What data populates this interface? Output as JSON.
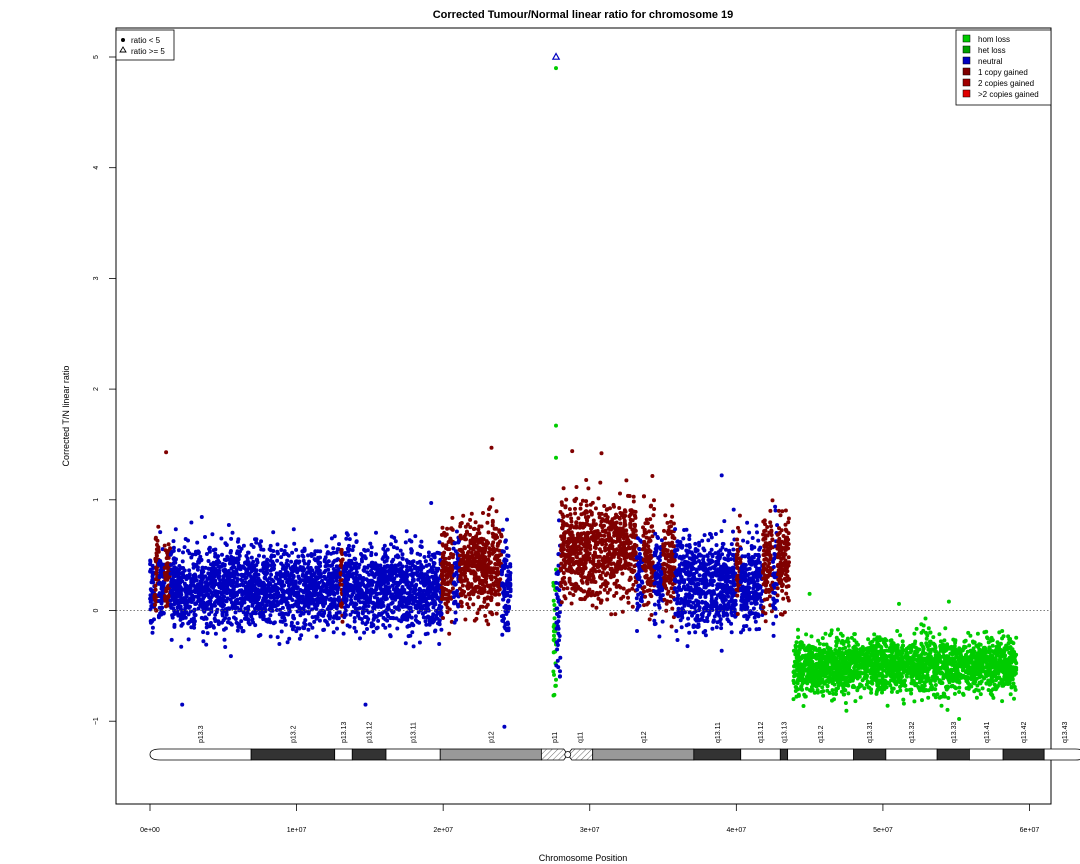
{
  "chart_data": {
    "type": "scatter",
    "title": "Corrected Tumour/Normal linear ratio for chromosome  19",
    "xlabel": "Chromosome Position",
    "ylabel": "Corrected T/N linear ratio",
    "xlim": [
      0,
      61500000
    ],
    "ylim": [
      -1.75,
      5.25
    ],
    "x_ticks": [
      0,
      10000000,
      20000000,
      30000000,
      40000000,
      50000000,
      60000000
    ],
    "x_tick_labels": [
      "0e+00",
      "1e+07",
      "2e+07",
      "3e+07",
      "4e+07",
      "5e+07",
      "6e+07"
    ],
    "y_ticks": [
      -1,
      0,
      1,
      2,
      3,
      4,
      5
    ],
    "y_tick_labels": [
      "−1",
      "0",
      "1",
      "2",
      "3",
      "4",
      "5"
    ],
    "reference_line": 0,
    "grid": false,
    "colors": {
      "hom_loss": "#00cc00",
      "het_loss": "#00a000",
      "neutral": "#0000c0",
      "one_copy_gain": "#800000",
      "two_copy_gain": "#a00000",
      "gt2_copy_gain": "#e00000"
    },
    "legend_shape": {
      "placement": "top-left",
      "entries": [
        "ratio < 5",
        "ratio >= 5"
      ]
    },
    "legend_state": {
      "placement": "top-right",
      "entries": [
        "hom loss",
        "het loss",
        "neutral",
        "1 copy gained",
        "2 copies gained",
        ">2 copies gained"
      ]
    },
    "segments": [
      {
        "state": "neutral",
        "start": 0,
        "end": 300000,
        "mean": 0.15,
        "sd": 0.18
      },
      {
        "state": "one_copy_gain",
        "start": 300000,
        "end": 600000,
        "mean": 0.35,
        "sd": 0.2
      },
      {
        "state": "neutral",
        "start": 600000,
        "end": 1000000,
        "mean": 0.25,
        "sd": 0.18
      },
      {
        "state": "one_copy_gain",
        "start": 1000000,
        "end": 1400000,
        "mean": 0.3,
        "sd": 0.2
      },
      {
        "state": "neutral",
        "start": 1400000,
        "end": 13000000,
        "mean": 0.2,
        "sd": 0.18
      },
      {
        "state": "one_copy_gain",
        "start": 13000000,
        "end": 13200000,
        "mean": 0.25,
        "sd": 0.18
      },
      {
        "state": "neutral",
        "start": 13200000,
        "end": 19900000,
        "mean": 0.2,
        "sd": 0.18
      },
      {
        "state": "one_copy_gain",
        "start": 19900000,
        "end": 20700000,
        "mean": 0.35,
        "sd": 0.2
      },
      {
        "state": "neutral",
        "start": 20700000,
        "end": 21100000,
        "mean": 0.3,
        "sd": 0.18
      },
      {
        "state": "one_copy_gain",
        "start": 21100000,
        "end": 24000000,
        "mean": 0.42,
        "sd": 0.2
      },
      {
        "state": "neutral",
        "start": 24000000,
        "end": 24600000,
        "mean": 0.15,
        "sd": 0.25
      },
      {
        "state": "hom_loss",
        "start": 27500000,
        "end": 27700000,
        "mean": -0.1,
        "sd": 0.35
      },
      {
        "state": "neutral",
        "start": 27700000,
        "end": 28000000,
        "mean": 0.1,
        "sd": 0.3
      },
      {
        "state": "one_copy_gain",
        "start": 28000000,
        "end": 33200000,
        "mean": 0.55,
        "sd": 0.22
      },
      {
        "state": "neutral",
        "start": 33200000,
        "end": 33600000,
        "mean": 0.3,
        "sd": 0.2
      },
      {
        "state": "one_copy_gain",
        "start": 33600000,
        "end": 34400000,
        "mean": 0.45,
        "sd": 0.2
      },
      {
        "state": "neutral",
        "start": 34400000,
        "end": 35000000,
        "mean": 0.3,
        "sd": 0.2
      },
      {
        "state": "one_copy_gain",
        "start": 35000000,
        "end": 35800000,
        "mean": 0.45,
        "sd": 0.2
      },
      {
        "state": "neutral",
        "start": 35800000,
        "end": 40000000,
        "mean": 0.25,
        "sd": 0.2
      },
      {
        "state": "one_copy_gain",
        "start": 40000000,
        "end": 40300000,
        "mean": 0.4,
        "sd": 0.2
      },
      {
        "state": "neutral",
        "start": 40300000,
        "end": 41800000,
        "mean": 0.25,
        "sd": 0.2
      },
      {
        "state": "one_copy_gain",
        "start": 41800000,
        "end": 42500000,
        "mean": 0.45,
        "sd": 0.2
      },
      {
        "state": "neutral",
        "start": 42500000,
        "end": 42800000,
        "mean": 0.3,
        "sd": 0.2
      },
      {
        "state": "one_copy_gain",
        "start": 42800000,
        "end": 43600000,
        "mean": 0.45,
        "sd": 0.2
      },
      {
        "state": "hom_loss",
        "start": 43900000,
        "end": 59100000,
        "mean": -0.5,
        "sd": 0.12
      }
    ],
    "notable_points": [
      {
        "x": 27700000,
        "y": 5.0,
        "state": "neutral",
        "shape": "triangle"
      },
      {
        "x": 27700000,
        "y": 4.9,
        "state": "hom_loss",
        "shape": "dot"
      },
      {
        "x": 27700000,
        "y": 1.67,
        "state": "hom_loss",
        "shape": "dot"
      },
      {
        "x": 27700000,
        "y": 1.38,
        "state": "hom_loss",
        "shape": "dot"
      },
      {
        "x": 23300000,
        "y": 1.47,
        "state": "one_copy_gain",
        "shape": "dot"
      },
      {
        "x": 1100000,
        "y": 1.43,
        "state": "one_copy_gain",
        "shape": "dot"
      },
      {
        "x": 28800000,
        "y": 1.44,
        "state": "one_copy_gain",
        "shape": "dot"
      },
      {
        "x": 30800000,
        "y": 1.42,
        "state": "one_copy_gain",
        "shape": "dot"
      },
      {
        "x": 39000000,
        "y": 1.22,
        "state": "neutral",
        "shape": "dot"
      },
      {
        "x": 14700000,
        "y": -0.85,
        "state": "neutral",
        "shape": "dot"
      },
      {
        "x": 2200000,
        "y": -0.85,
        "state": "neutral",
        "shape": "dot"
      },
      {
        "x": 55200000,
        "y": -0.98,
        "state": "hom_loss",
        "shape": "dot"
      },
      {
        "x": 51100000,
        "y": 0.06,
        "state": "hom_loss",
        "shape": "dot"
      },
      {
        "x": 45000000,
        "y": 0.15,
        "state": "hom_loss",
        "shape": "dot"
      },
      {
        "x": 54500000,
        "y": 0.08,
        "state": "hom_loss",
        "shape": "dot"
      }
    ],
    "cytobands": [
      {
        "name": "p13.3",
        "start": 0,
        "end": 6900000,
        "stain": "gneg"
      },
      {
        "name": "p13.2",
        "start": 6900000,
        "end": 12600000,
        "stain": "gpos75"
      },
      {
        "name": "p13.13",
        "start": 12600000,
        "end": 13800000,
        "stain": "gneg"
      },
      {
        "name": "p13.12",
        "start": 13800000,
        "end": 16100000,
        "stain": "gpos75"
      },
      {
        "name": "p13.11",
        "start": 16100000,
        "end": 19800000,
        "stain": "gneg"
      },
      {
        "name": "p12",
        "start": 19800000,
        "end": 26700000,
        "stain": "gvar"
      },
      {
        "name": "p11",
        "start": 26700000,
        "end": 28500000,
        "stain": "acen"
      },
      {
        "name": "q11",
        "start": 28500000,
        "end": 30200000,
        "stain": "acen"
      },
      {
        "name": "q12",
        "start": 30200000,
        "end": 37100000,
        "stain": "gvar"
      },
      {
        "name": "q13.11",
        "start": 37100000,
        "end": 40300000,
        "stain": "gpos75"
      },
      {
        "name": "q13.12",
        "start": 40300000,
        "end": 43000000,
        "stain": "gneg"
      },
      {
        "name": "q13.13",
        "start": 43000000,
        "end": 43500000,
        "stain": "gpos75"
      },
      {
        "name": "q13.2",
        "start": 43500000,
        "end": 48000000,
        "stain": "gneg"
      },
      {
        "name": "q13.31",
        "start": 48000000,
        "end": 50200000,
        "stain": "gpos75"
      },
      {
        "name": "q13.32",
        "start": 50200000,
        "end": 53700000,
        "stain": "gneg"
      },
      {
        "name": "q13.33",
        "start": 53700000,
        "end": 55900000,
        "stain": "gpos75"
      },
      {
        "name": "q13.41",
        "start": 55900000,
        "end": 58200000,
        "stain": "gneg"
      },
      {
        "name": "q13.42",
        "start": 58200000,
        "end": 61000000,
        "stain": "gpos75"
      },
      {
        "name": "q13.43",
        "start": 61000000,
        "end": 63800000,
        "stain": "gneg"
      }
    ]
  }
}
